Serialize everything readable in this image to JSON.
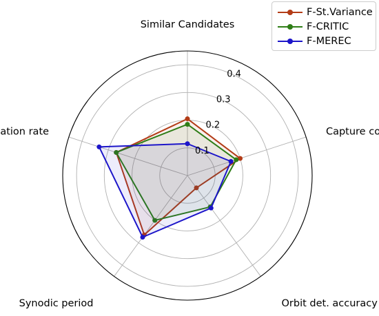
{
  "chart_data": {
    "type": "radar",
    "axes": [
      "Similar Candidates",
      "Capture cost",
      "Orbit det. accuracy",
      "Synodic period",
      "Rotation rate"
    ],
    "radial_ticks": [
      "0.1",
      "0.2",
      "0.3",
      "0.4"
    ],
    "radial_tick_values": [
      0.1,
      0.2,
      0.3,
      0.4
    ],
    "rmax": 0.45,
    "grid": true,
    "legend_position": "top-right",
    "series": [
      {
        "name": "F-St.Variance",
        "color": "#b33c17",
        "values": [
          0.205,
          0.2,
          0.055,
          0.265,
          0.27
        ]
      },
      {
        "name": "F-CRITIC",
        "color": "#2e7d16",
        "values": [
          0.185,
          0.185,
          0.14,
          0.2,
          0.27
        ]
      },
      {
        "name": "F-MEREC",
        "color": "#1c15c9",
        "values": [
          0.115,
          0.165,
          0.145,
          0.275,
          0.335
        ]
      }
    ]
  }
}
